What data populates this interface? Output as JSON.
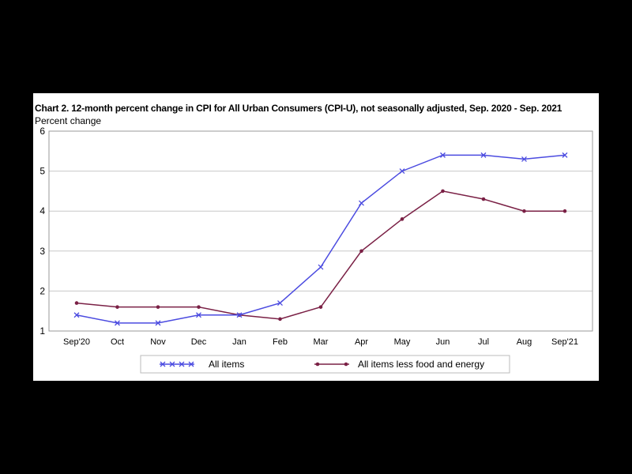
{
  "chart_data": {
    "type": "line",
    "title": "Chart 2. 12-month percent change in CPI for All Urban Consumers (CPI-U), not seasonally adjusted, Sep. 2020 - Sep. 2021",
    "ylabel": "Percent change",
    "xlabel": "",
    "categories": [
      "Sep'20",
      "Oct",
      "Nov",
      "Dec",
      "Jan",
      "Feb",
      "Mar",
      "Apr",
      "May",
      "Jun",
      "Jul",
      "Aug",
      "Sep'21"
    ],
    "ylim": [
      1,
      6
    ],
    "yticks": [
      1,
      2,
      3,
      4,
      5,
      6
    ],
    "grid": true,
    "legend": "bottom",
    "series": [
      {
        "name": "All items",
        "color": "#4B4BE0",
        "marker": "x",
        "values": [
          1.4,
          1.2,
          1.2,
          1.4,
          1.4,
          1.7,
          2.6,
          4.2,
          5.0,
          5.4,
          5.4,
          5.3,
          5.4
        ]
      },
      {
        "name": "All items less food and energy",
        "color": "#7A2045",
        "marker": "dot",
        "values": [
          1.7,
          1.6,
          1.6,
          1.6,
          1.4,
          1.3,
          1.6,
          3.0,
          3.8,
          4.5,
          4.3,
          4.0,
          4.0
        ]
      }
    ]
  }
}
